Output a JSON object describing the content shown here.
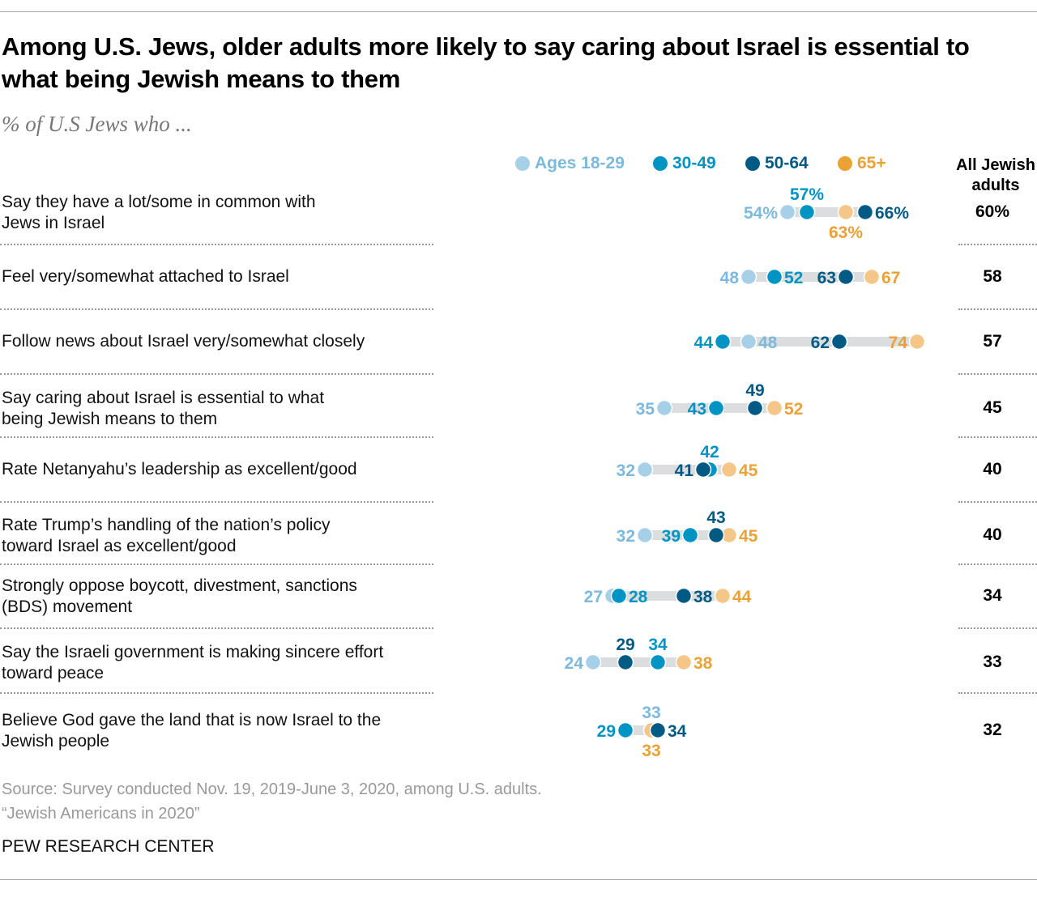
{
  "title": "Among U.S. Jews, older adults more likely to say caring about Israel is essential to what being Jewish means to them",
  "subtitle": "% of U.S Jews who ...",
  "all_header": "All Jewish adults",
  "source": "Source: Survey conducted Nov. 19, 2019-June 3, 2020, among U.S. adults.",
  "report": "“Jewish Americans in 2020”",
  "org": "PEW RESEARCH CENTER",
  "chart_data": {
    "type": "dot",
    "series": [
      {
        "name": "Ages 18-29",
        "dot_color": "#a6cfe8",
        "label_color": "#7cb9dd"
      },
      {
        "name": "30-49",
        "dot_color": "#0094c4",
        "label_color": "#0094c4"
      },
      {
        "name": "50-64",
        "dot_color": "#005a84",
        "label_color": "#005a84"
      },
      {
        "name": "65+",
        "dot_color": "#f4c687",
        "label_color": "#eca133",
        "legend_color": "#eca133"
      }
    ],
    "rows": [
      {
        "label": "Say they have a lot/some in common with Jews in Israel",
        "values": [
          54,
          57,
          66,
          63
        ],
        "all": 60,
        "percent": true
      },
      {
        "label": "Feel very/somewhat attached to Israel",
        "values": [
          48,
          52,
          63,
          67
        ],
        "all": 58
      },
      {
        "label": "Follow news about Israel very/somewhat closely",
        "values": [
          48,
          44,
          62,
          74
        ],
        "all": 57
      },
      {
        "label": "Say caring about Israel is essential to what being Jewish means to them",
        "values": [
          35,
          43,
          49,
          52
        ],
        "all": 45
      },
      {
        "label": "Rate Netanyahu’s leadership as excellent/good",
        "values": [
          32,
          42,
          41,
          45
        ],
        "all": 40
      },
      {
        "label": "Rate Trump’s handling of the nation’s policy toward Israel as excellent/good",
        "values": [
          32,
          39,
          43,
          45
        ],
        "all": 40
      },
      {
        "label": "Strongly oppose boycott, divestment, sanctions (BDS) movement",
        "values": [
          27,
          28,
          38,
          44
        ],
        "all": 34
      },
      {
        "label": "Say the Israeli government is making sincere effort toward peace",
        "values": [
          24,
          34,
          29,
          38
        ],
        "all": 33
      },
      {
        "label": "Believe God gave the land that is now Israel to the Jewish people",
        "values": [
          33,
          29,
          34,
          33
        ],
        "all": 32
      }
    ]
  }
}
